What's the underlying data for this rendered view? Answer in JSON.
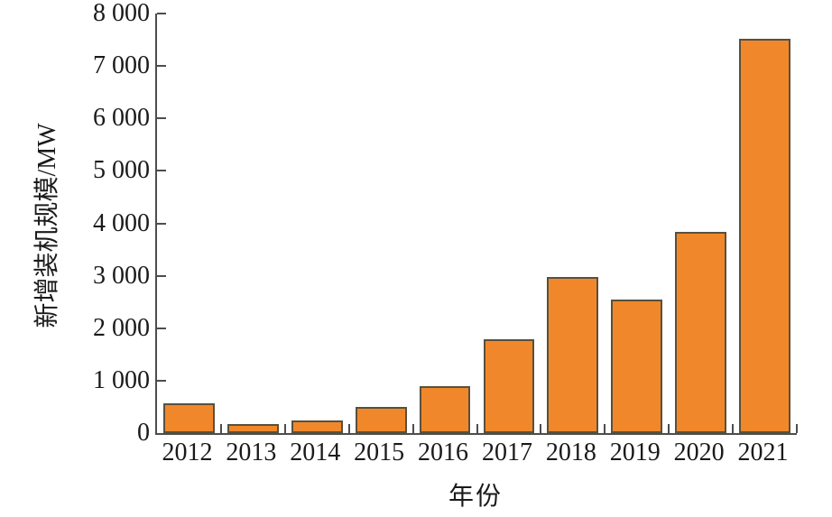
{
  "chart_data": {
    "type": "bar",
    "title": "",
    "xlabel": "年份",
    "ylabel": "新增装机规模/MW",
    "categories": [
      "2012",
      "2013",
      "2014",
      "2015",
      "2016",
      "2017",
      "2018",
      "2019",
      "2020",
      "2021"
    ],
    "values": [
      560,
      180,
      240,
      500,
      900,
      1790,
      2980,
      2540,
      3840,
      7520
    ],
    "ylim": [
      0,
      8000
    ],
    "ytick_interval": 1000,
    "ytick_labels": [
      "0",
      "1 000",
      "2 000",
      "3 000",
      "4 000",
      "5 000",
      "6 000",
      "7 000",
      "8 000"
    ],
    "grid": false,
    "legend_position": "none",
    "bar_fill_color": "#f0882b",
    "bar_border_color": "#59503c",
    "axis_color": "#4d4d4d",
    "text_color": "#1a1a1a",
    "background_color": "#ffffff"
  }
}
